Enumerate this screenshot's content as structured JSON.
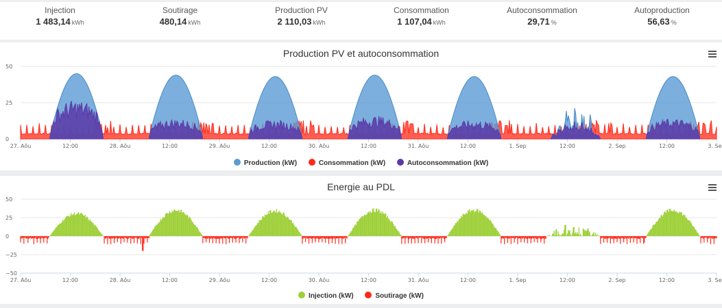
{
  "kpis": [
    {
      "label": "Injection",
      "value": "1 483,14",
      "unit": "kWh"
    },
    {
      "label": "Soutirage",
      "value": "480,14",
      "unit": "kWh"
    },
    {
      "label": "Production PV",
      "value": "2 110,03",
      "unit": "kWh"
    },
    {
      "label": "Consommation",
      "value": "1 107,04",
      "unit": "kWh"
    },
    {
      "label": "Autoconsommation",
      "value": "29,71",
      "unit": "%"
    },
    {
      "label": "Autoproduction",
      "value": "56,63",
      "unit": "%"
    }
  ],
  "colors": {
    "production": "#5b9bd5",
    "consommation": "#ff2a1a",
    "autoconsommation": "#5b3aa8",
    "injection": "#9fd03a",
    "soutirage": "#ff2a1a"
  },
  "chart_data": [
    {
      "type": "area",
      "title": "Production PV et autoconsommation",
      "xlabel": "",
      "ylabel": "",
      "ylim": [
        0,
        50
      ],
      "yticks": [
        "0",
        "25",
        "50"
      ],
      "x_range_hours": [
        0,
        168
      ],
      "xticks": [
        {
          "h": 0,
          "label": "27. Aôu"
        },
        {
          "h": 12,
          "label": "12:00"
        },
        {
          "h": 24,
          "label": "28. Aôu"
        },
        {
          "h": 36,
          "label": "12:00"
        },
        {
          "h": 48,
          "label": "29. Aôu"
        },
        {
          "h": 60,
          "label": "12:00"
        },
        {
          "h": 72,
          "label": "30. Aôu"
        },
        {
          "h": 84,
          "label": "12:00"
        },
        {
          "h": 96,
          "label": "31. Aôu"
        },
        {
          "h": 108,
          "label": "12:00"
        },
        {
          "h": 120,
          "label": "1. Sep"
        },
        {
          "h": 132,
          "label": "12:00"
        },
        {
          "h": 144,
          "label": "2. Sep"
        },
        {
          "h": 156,
          "label": "12:00"
        },
        {
          "h": 168,
          "label": "3. Sep"
        }
      ],
      "grid": true,
      "legend": "bottom-center",
      "series": [
        {
          "name": "Production (kW)",
          "key": "production",
          "daily_peaks_kW": [
            45,
            44,
            43,
            44,
            43,
            28,
            43
          ],
          "daily_window_h": [
            [
              7,
              20
            ],
            [
              7,
              20
            ],
            [
              7,
              20
            ],
            [
              7,
              20
            ],
            [
              7,
              20
            ],
            [
              8,
              20
            ],
            [
              7,
              20
            ]
          ]
        },
        {
          "name": "Consommation (kW)",
          "key": "consommation",
          "baseline_kW": 3,
          "spike_kW": [
            8,
            13
          ],
          "max_spike_kW": 20
        },
        {
          "name": "Autoconsommation (kW)",
          "key": "autoconsommation",
          "daily_peaks_kW": [
            27,
            14,
            13,
            16,
            13,
            12,
            14
          ]
        }
      ]
    },
    {
      "type": "bar",
      "title": "Energie au PDL",
      "xlabel": "",
      "ylabel": "",
      "ylim": [
        -50,
        50
      ],
      "yticks": [
        "−50",
        "−25",
        "0",
        "25",
        "50"
      ],
      "x_range_hours": [
        0,
        168
      ],
      "xticks": [
        {
          "h": 0,
          "label": "27. Aôu"
        },
        {
          "h": 12,
          "label": "12:00"
        },
        {
          "h": 24,
          "label": "28. Aôu"
        },
        {
          "h": 36,
          "label": "12:00"
        },
        {
          "h": 48,
          "label": "29. Aôu"
        },
        {
          "h": 60,
          "label": "12:00"
        },
        {
          "h": 72,
          "label": "30. Aôu"
        },
        {
          "h": 84,
          "label": "12:00"
        },
        {
          "h": 96,
          "label": "31. Aôu"
        },
        {
          "h": 108,
          "label": "12:00"
        },
        {
          "h": 120,
          "label": "1. Sep"
        },
        {
          "h": 132,
          "label": "12:00"
        },
        {
          "h": 144,
          "label": "2. Sep"
        },
        {
          "h": 156,
          "label": "12:00"
        },
        {
          "h": 168,
          "label": "3. Sep"
        }
      ],
      "grid": true,
      "legend": "bottom-center",
      "series": [
        {
          "name": "Injection (kW)",
          "key": "injection",
          "daily_peaks_kW": [
            33,
            38,
            37,
            38,
            38,
            22,
            38
          ]
        },
        {
          "name": "Soutirage (kW)",
          "key": "soutirage",
          "typical_kW": -8,
          "min_kW": -20
        }
      ]
    }
  ]
}
